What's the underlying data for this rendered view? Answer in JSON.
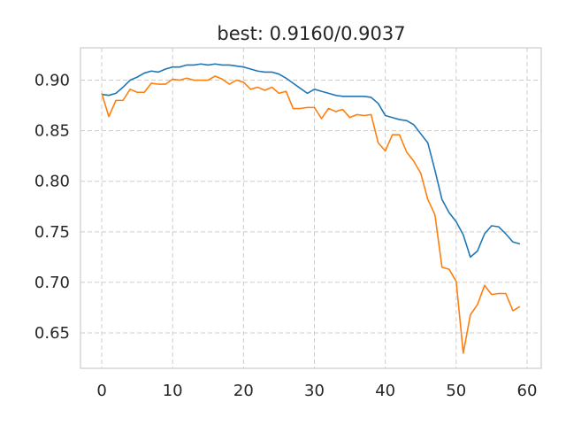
{
  "chart_data": {
    "type": "line",
    "title": "best: 0.9160/0.9037",
    "xlabel": "",
    "ylabel": "",
    "xlim": [
      -3,
      62
    ],
    "ylim": [
      0.615,
      0.932
    ],
    "xticks": [
      0,
      10,
      20,
      30,
      40,
      50,
      60
    ],
    "yticks": [
      0.65,
      0.7,
      0.75,
      0.8,
      0.85,
      0.9
    ],
    "grid": true,
    "x": [
      0,
      1,
      2,
      3,
      4,
      5,
      6,
      7,
      8,
      9,
      10,
      11,
      12,
      13,
      14,
      15,
      16,
      17,
      18,
      19,
      20,
      21,
      22,
      23,
      24,
      25,
      26,
      27,
      28,
      29,
      30,
      31,
      32,
      33,
      34,
      35,
      36,
      37,
      38,
      39,
      40,
      41,
      42,
      43,
      44,
      45,
      46,
      47,
      48,
      49,
      50,
      51,
      52,
      53,
      54,
      55,
      56,
      57,
      58,
      59
    ],
    "series": [
      {
        "color": "#1f77b4",
        "values": [
          0.886,
          0.885,
          0.887,
          0.893,
          0.9,
          0.903,
          0.907,
          0.909,
          0.908,
          0.911,
          0.913,
          0.913,
          0.915,
          0.915,
          0.916,
          0.915,
          0.916,
          0.915,
          0.915,
          0.914,
          0.913,
          0.911,
          0.909,
          0.908,
          0.908,
          0.906,
          0.902,
          0.897,
          0.892,
          0.887,
          0.891,
          0.889,
          0.887,
          0.885,
          0.884,
          0.884,
          0.884,
          0.884,
          0.883,
          0.877,
          0.865,
          0.863,
          0.861,
          0.86,
          0.856,
          0.847,
          0.838,
          0.811,
          0.782,
          0.769,
          0.76,
          0.747,
          0.725,
          0.731,
          0.748,
          0.756,
          0.755,
          0.748,
          0.74,
          0.738
        ]
      },
      {
        "color": "#ff7f0e",
        "values": [
          0.887,
          0.864,
          0.88,
          0.88,
          0.891,
          0.888,
          0.888,
          0.897,
          0.896,
          0.896,
          0.901,
          0.9,
          0.902,
          0.9,
          0.9,
          0.9,
          0.904,
          0.901,
          0.896,
          0.9,
          0.898,
          0.891,
          0.893,
          0.89,
          0.893,
          0.887,
          0.889,
          0.872,
          0.872,
          0.873,
          0.873,
          0.862,
          0.872,
          0.869,
          0.871,
          0.863,
          0.866,
          0.865,
          0.866,
          0.838,
          0.83,
          0.846,
          0.846,
          0.829,
          0.82,
          0.808,
          0.782,
          0.767,
          0.715,
          0.713,
          0.701,
          0.63,
          0.668,
          0.678,
          0.697,
          0.688,
          0.689,
          0.689,
          0.672,
          0.676
        ]
      }
    ]
  }
}
